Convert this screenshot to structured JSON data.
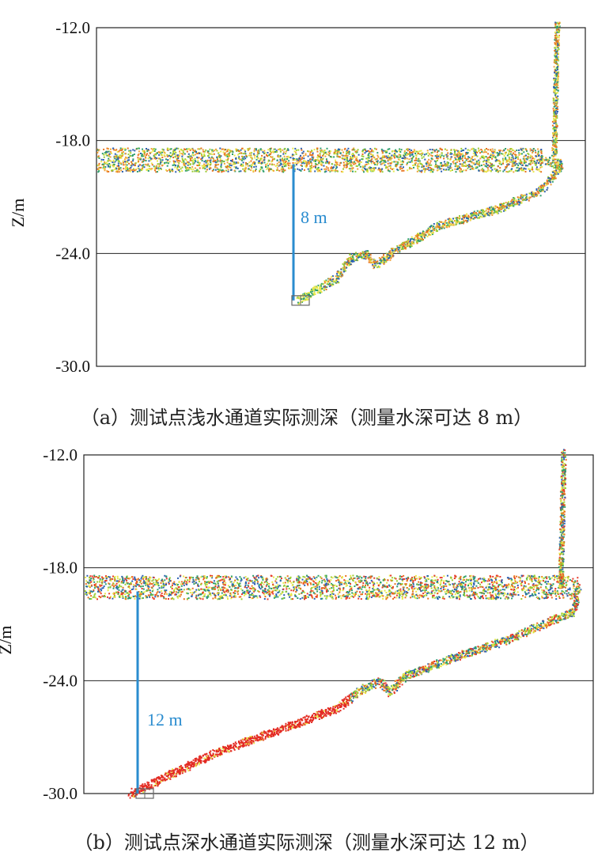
{
  "chart_data": [
    {
      "type": "scatter",
      "id": "a",
      "ylabel": "Z/m",
      "yticks": [
        "-12.0",
        "-18.0",
        "-24.0",
        "-30.0"
      ],
      "ylim": [
        -30,
        -12
      ],
      "grid": "horizontal lines at -18.0 and -24.0",
      "annotation": "8 m",
      "caption": "（a）测试点浅水通道实际测深（测量水深可达 8 m）",
      "water_surface_z": -19.0,
      "bottom_point": {
        "x": 0.41,
        "z": -26.5
      },
      "series": [
        {
          "values": [
            [
              0.0,
              -19.0
            ],
            [
              0.91,
              -19.0
            ],
            [
              0.95,
              -19.2
            ],
            [
              0.91,
              -20.6
            ],
            [
              0.82,
              -21.6
            ],
            [
              0.7,
              -22.5
            ],
            [
              0.61,
              -23.8
            ],
            [
              0.57,
              -24.6
            ],
            [
              0.55,
              -24.0
            ],
            [
              0.52,
              -24.2
            ],
            [
              0.49,
              -25.3
            ],
            [
              0.45,
              -25.9
            ],
            [
              0.41,
              -26.5
            ]
          ]
        }
      ],
      "colors": [
        "#e8731f",
        "#f0a23a",
        "#9acd32",
        "#2e9e6e",
        "#2a5fb3",
        "#e8e84a"
      ]
    },
    {
      "type": "scatter",
      "id": "b",
      "ylabel": "Z/m",
      "yticks": [
        "-12.0",
        "-18.0",
        "-24.0",
        "-30.0"
      ],
      "ylim": [
        -30,
        -12
      ],
      "grid": "horizontal lines at -18.0 and -24.0",
      "annotation": "12 m",
      "caption": "（b）测试点深水通道实际测深（测量水深可达 12 m）",
      "water_surface_z": -19.0,
      "bottom_point": {
        "x": 0.09,
        "z": -30.0
      },
      "series": [
        {
          "values": [
            [
              0.0,
              -19.0
            ],
            [
              0.97,
              -19.0
            ],
            [
              0.96,
              -20.3
            ],
            [
              0.83,
              -21.8
            ],
            [
              0.72,
              -22.8
            ],
            [
              0.63,
              -23.7
            ],
            [
              0.6,
              -24.6
            ],
            [
              0.58,
              -24.0
            ],
            [
              0.54,
              -24.5
            ],
            [
              0.5,
              -25.4
            ],
            [
              0.38,
              -26.6
            ],
            [
              0.25,
              -27.9
            ],
            [
              0.12,
              -29.6
            ],
            [
              0.09,
              -30.0
            ]
          ]
        }
      ],
      "colors": [
        "#e8731f",
        "#e83a2a",
        "#9acd32",
        "#2e9e6e",
        "#2a5fb3",
        "#e8e84a"
      ]
    }
  ]
}
